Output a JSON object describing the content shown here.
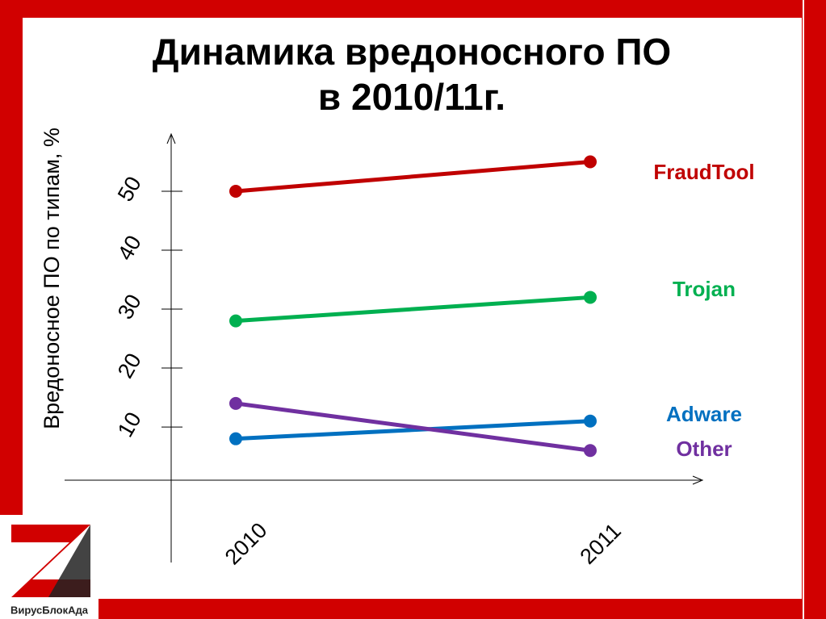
{
  "chart_data": {
    "type": "line",
    "title": [
      "Динамика вредоносного ПО",
      "в 2010/11г."
    ],
    "y_label": "Вредоносное ПО по типам, %",
    "categories": [
      "2010",
      "2011"
    ],
    "series": [
      {
        "name": "FraudTool",
        "color": "#c00000",
        "values": [
          50,
          55
        ]
      },
      {
        "name": "Trojan",
        "color": "#00b050",
        "values": [
          28,
          32
        ]
      },
      {
        "name": "Adware",
        "color": "#0070c0",
        "values": [
          8,
          11
        ]
      },
      {
        "name": "Other",
        "color": "#7030a0",
        "values": [
          14,
          6
        ]
      }
    ],
    "ylim": [
      -13,
      60
    ],
    "yticks": [
      10,
      20,
      30,
      40,
      50
    ],
    "logo": "ВирусБлокАда"
  }
}
